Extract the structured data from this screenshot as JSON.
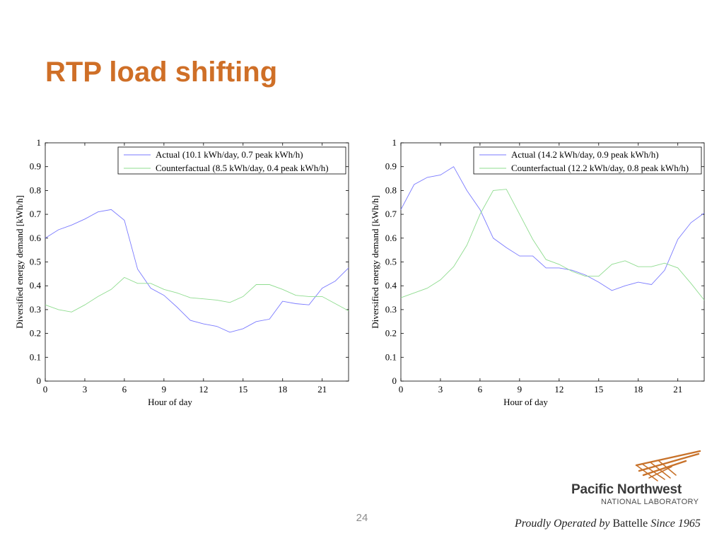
{
  "slide": {
    "title": "RTP load shifting",
    "page_number": "24"
  },
  "logo": {
    "name": "Pacific Northwest",
    "subtitle": "NATIONAL LABORATORY",
    "tagline_pre": "Proudly Operated by ",
    "tagline_brand": "Battelle",
    "tagline_post": " Since 1965",
    "mark_color": "#c8722a"
  },
  "chart_data": [
    {
      "type": "line",
      "xlabel": "Hour of day",
      "ylabel": "Diversified energy demand [kWh/h]",
      "xlim": [
        0,
        23
      ],
      "ylim": [
        0,
        1
      ],
      "xticks": [
        0,
        3,
        6,
        9,
        12,
        15,
        18,
        21
      ],
      "yticks": [
        0,
        0.1,
        0.2,
        0.3,
        0.4,
        0.5,
        0.6,
        0.7,
        0.8,
        0.9,
        1
      ],
      "legend_position": "top-right",
      "x": [
        0,
        1,
        2,
        3,
        4,
        5,
        6,
        7,
        8,
        9,
        10,
        11,
        12,
        13,
        14,
        15,
        16,
        17,
        18,
        19,
        20,
        21,
        22,
        23
      ],
      "series": [
        {
          "name": "Actual (10.1 kWh/day, 0.7 peak kWh/h)",
          "color": "#7a7aff",
          "values": [
            0.6,
            0.635,
            0.655,
            0.68,
            0.71,
            0.72,
            0.675,
            0.47,
            0.39,
            0.36,
            0.31,
            0.255,
            0.24,
            0.23,
            0.205,
            0.22,
            0.25,
            0.26,
            0.335,
            0.325,
            0.32,
            0.39,
            0.42,
            0.475
          ]
        },
        {
          "name": "Counterfactual (8.5 kWh/day, 0.4 peak kWh/h)",
          "color": "#8fdc8f",
          "values": [
            0.32,
            0.3,
            0.29,
            0.32,
            0.355,
            0.385,
            0.435,
            0.41,
            0.41,
            0.385,
            0.37,
            0.35,
            0.345,
            0.34,
            0.33,
            0.355,
            0.405,
            0.405,
            0.385,
            0.36,
            0.355,
            0.355,
            0.325,
            0.295
          ]
        }
      ]
    },
    {
      "type": "line",
      "xlabel": "Hour of day",
      "ylabel": "Diversified energy demand [kWh/h]",
      "xlim": [
        0,
        23
      ],
      "ylim": [
        0,
        1
      ],
      "xticks": [
        0,
        3,
        6,
        9,
        12,
        15,
        18,
        21
      ],
      "yticks": [
        0,
        0.1,
        0.2,
        0.3,
        0.4,
        0.5,
        0.6,
        0.7,
        0.8,
        0.9,
        1
      ],
      "legend_position": "top-right",
      "x": [
        0,
        1,
        2,
        3,
        4,
        5,
        6,
        7,
        8,
        9,
        10,
        11,
        12,
        13,
        14,
        15,
        16,
        17,
        18,
        19,
        20,
        21,
        22,
        23
      ],
      "series": [
        {
          "name": "Actual (14.2 kWh/day, 0.9 peak kWh/h)",
          "color": "#7a7aff",
          "values": [
            0.72,
            0.825,
            0.855,
            0.865,
            0.9,
            0.8,
            0.72,
            0.6,
            0.56,
            0.525,
            0.525,
            0.475,
            0.475,
            0.465,
            0.445,
            0.415,
            0.38,
            0.4,
            0.415,
            0.405,
            0.465,
            0.595,
            0.665,
            0.705
          ]
        },
        {
          "name": "Counterfactual (12.2 kWh/day, 0.8 peak kWh/h)",
          "color": "#8fdc8f",
          "values": [
            0.35,
            0.37,
            0.39,
            0.425,
            0.48,
            0.57,
            0.7,
            0.8,
            0.805,
            0.7,
            0.595,
            0.51,
            0.49,
            0.46,
            0.44,
            0.44,
            0.49,
            0.505,
            0.48,
            0.48,
            0.495,
            0.475,
            0.41,
            0.34
          ]
        }
      ]
    }
  ]
}
